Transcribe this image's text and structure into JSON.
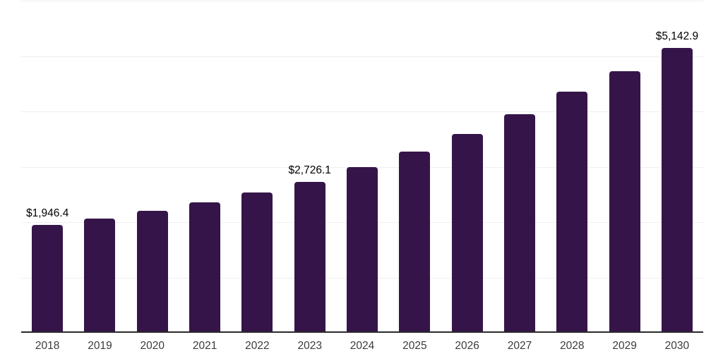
{
  "chart_data": {
    "type": "bar",
    "title": "",
    "xlabel": "",
    "ylabel": "",
    "categories": [
      "2018",
      "2019",
      "2020",
      "2021",
      "2022",
      "2023",
      "2024",
      "2025",
      "2026",
      "2027",
      "2028",
      "2029",
      "2030"
    ],
    "values": [
      1946.4,
      2070,
      2198,
      2359,
      2536,
      2726.1,
      2993,
      3270,
      3588,
      3949,
      4352,
      4722,
      5142.9
    ],
    "value_labels": [
      "$1,946.4",
      "",
      "",
      "",
      "",
      "$2,726.1",
      "",
      "",
      "",
      "",
      "",
      "",
      "$5,142.9"
    ],
    "ylim": [
      0,
      6000
    ],
    "gridline_step": 1000,
    "grid": "horizontal",
    "legend": "none",
    "y_tick_labels_visible": false
  },
  "colors": {
    "background": "#ffffff",
    "bar": "#351549",
    "gridline": "#efefef",
    "axis_line": "#2a2a2a",
    "tick_label": "#3c3c3c",
    "data_label": "#000000"
  }
}
